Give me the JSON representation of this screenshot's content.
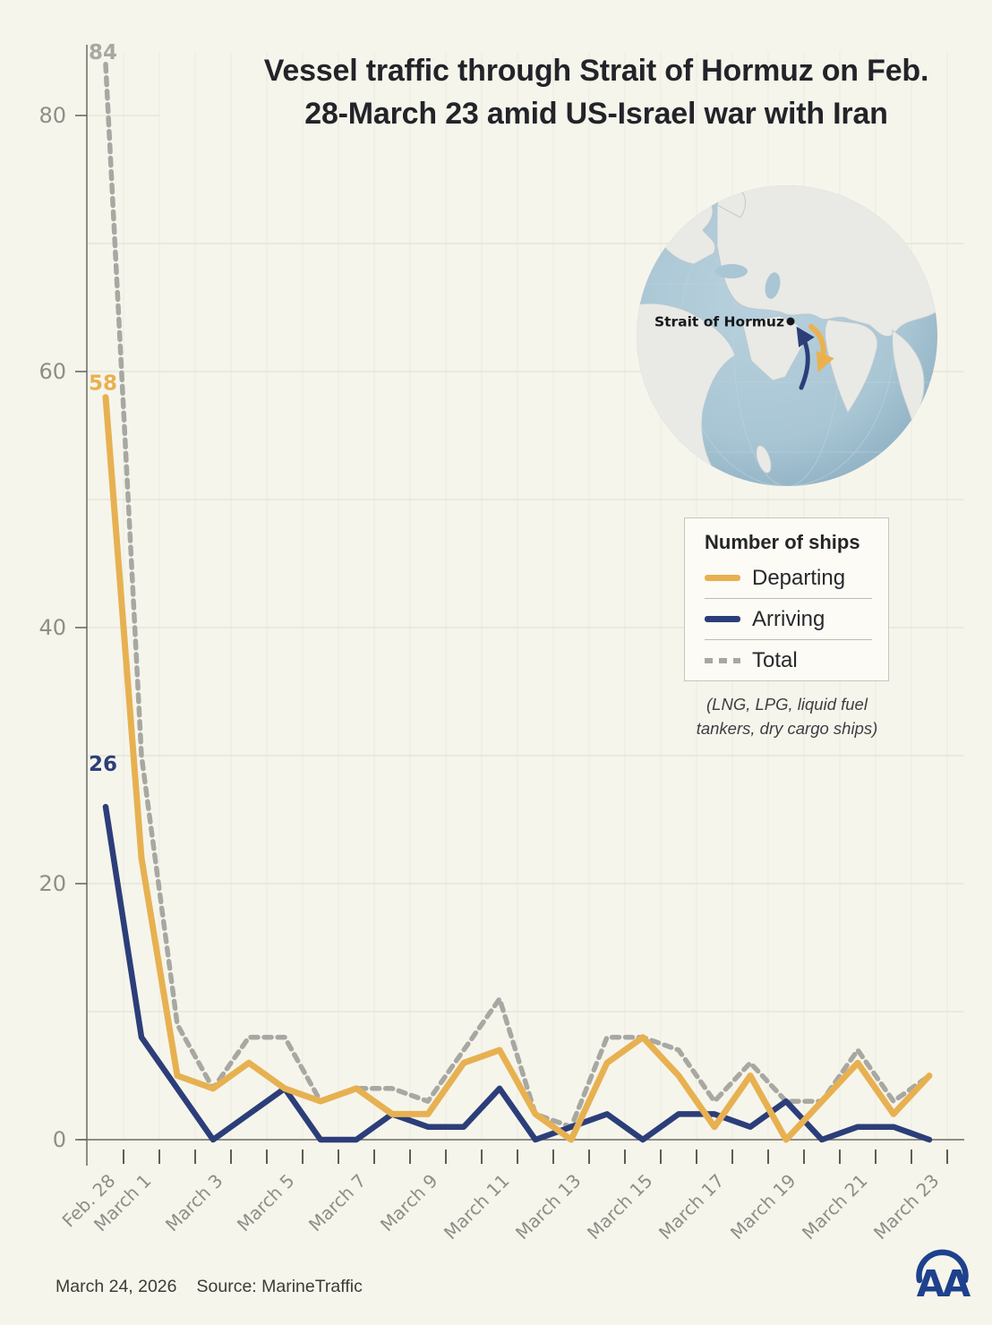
{
  "title": {
    "line1": "Vessel traffic through Strait of Hormuz on Feb.",
    "line2": "28-March 23 amid US-Israel war with Iran"
  },
  "map": {
    "label": "Strait of Hormuz"
  },
  "legend": {
    "title": "Number of ships",
    "items": [
      {
        "label": "Departing",
        "color": "#e7b151",
        "style": "solid"
      },
      {
        "label": "Arriving",
        "color": "#2c3e79",
        "style": "solid"
      },
      {
        "label": "Total",
        "color": "#a8a8a3",
        "style": "dashed"
      }
    ]
  },
  "note": {
    "line1": "(LNG, LPG, liquid fuel",
    "line2": "tankers, dry cargo ships)"
  },
  "annotations": {
    "total_start": "84",
    "departing_start": "58",
    "arriving_start": "26"
  },
  "footer": {
    "date": "March 24, 2026",
    "source": "Source: MarineTraffic"
  },
  "logo": {
    "text": "AA"
  },
  "colors": {
    "background": "#f6f5ec",
    "departing": "#e7b151",
    "arriving": "#2c3e79",
    "total": "#a8a8a3",
    "axis": "#6a6a63",
    "tick": "#4c4c47",
    "axis_label": "#8e8e88",
    "grid": "#dfddd1",
    "grid_vertical": "#ecebdf",
    "title_text": "#232429",
    "logo_blue": "#1e418d",
    "ocean": "#a9c6d4",
    "land": "#e9e9e5"
  },
  "chart_data": {
    "type": "line",
    "x": [
      "Feb. 28",
      "March 1",
      "March 2",
      "March 3",
      "March 4",
      "March 5",
      "March 6",
      "March 7",
      "March 8",
      "March 9",
      "March 10",
      "March 11",
      "March 12",
      "March 13",
      "March 14",
      "March 15",
      "March 16",
      "March 17",
      "March 18",
      "March 19",
      "March 20",
      "March 21",
      "March 22",
      "March 23"
    ],
    "labeled_indices": [
      0,
      1,
      3,
      5,
      7,
      9,
      11,
      13,
      15,
      17,
      19,
      21,
      23
    ],
    "series": [
      {
        "name": "Total",
        "color": "#a8a8a3",
        "dashed": true,
        "values": [
          84,
          30,
          9,
          4,
          8,
          8,
          3,
          4,
          4,
          3,
          7,
          11,
          2,
          1,
          8,
          8,
          7,
          3,
          6,
          3,
          3,
          7,
          3,
          5
        ]
      },
      {
        "name": "Arriving",
        "color": "#2c3e79",
        "dashed": false,
        "values": [
          26,
          8,
          4,
          0,
          2,
          4,
          0,
          0,
          2,
          1,
          1,
          4,
          0,
          1,
          2,
          0,
          2,
          2,
          1,
          3,
          0,
          1,
          1,
          0
        ]
      },
      {
        "name": "Departing",
        "color": "#e7b151",
        "dashed": false,
        "values": [
          58,
          22,
          5,
          4,
          6,
          4,
          3,
          4,
          2,
          2,
          6,
          7,
          2,
          0,
          6,
          8,
          5,
          1,
          5,
          0,
          3,
          6,
          2,
          5
        ]
      }
    ],
    "title": "Vessel traffic through Strait of Hormuz on Feb. 28-March 23 amid US-Israel war with Iran",
    "xlabel": "",
    "ylabel": "Number of ships",
    "ylim": [
      0,
      88
    ],
    "yticks": [
      0,
      20,
      40,
      60,
      80
    ],
    "minor_grid_step": 10,
    "grid": true,
    "legend_position": "right"
  }
}
